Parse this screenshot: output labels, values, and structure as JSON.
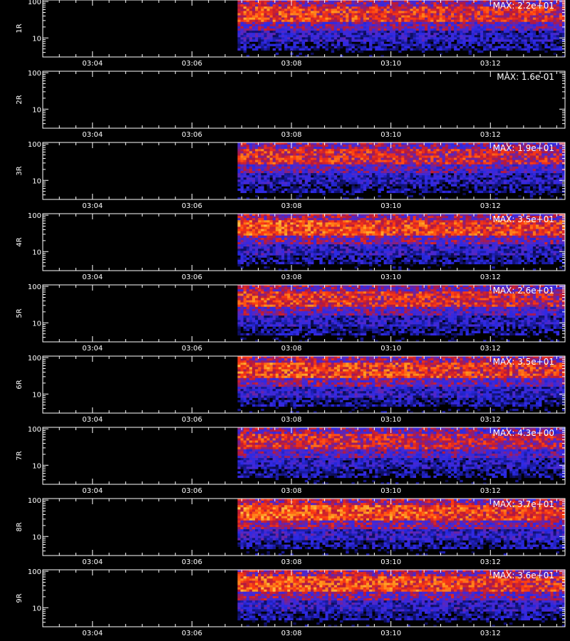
{
  "chart_data": {
    "type": "heatmap",
    "xlabel": "",
    "x_ticks": [
      "03:04",
      "03:06",
      "03:08",
      "03:10",
      "03:12"
    ],
    "x_range": [
      "03:03",
      "03:13:30"
    ],
    "data_start": "03:06:55",
    "y_ticks": [
      "100",
      "10"
    ],
    "y_scale": "log",
    "y_range": [
      3,
      110
    ],
    "colormap": [
      "#000000",
      "#10106e",
      "#2a2ae6",
      "#5028cc",
      "#b8183a",
      "#ff3a10",
      "#ff9a1e",
      "#ffe878",
      "#ffffff"
    ],
    "panels": [
      {
        "label": "1R",
        "max_label": "MAX: 2.2e+01",
        "intensity": 0.85
      },
      {
        "label": "2R",
        "max_label": "MAX: 1.6e-01",
        "intensity": 0.0
      },
      {
        "label": "3R",
        "max_label": "MAX: 1.9e+01",
        "intensity": 0.8
      },
      {
        "label": "4R",
        "max_label": "MAX: 3.5e+01",
        "intensity": 0.9
      },
      {
        "label": "5R",
        "max_label": "MAX: 2.6e+01",
        "intensity": 0.82
      },
      {
        "label": "6R",
        "max_label": "MAX: 3.5e+01",
        "intensity": 0.88
      },
      {
        "label": "7R",
        "max_label": "MAX: 4.3e+00",
        "intensity": 0.78
      },
      {
        "label": "8R",
        "max_label": "MAX: 3.7e+01",
        "intensity": 0.92
      },
      {
        "label": "9R",
        "max_label": "MAX: 3.6e+01",
        "intensity": 0.9
      }
    ]
  }
}
